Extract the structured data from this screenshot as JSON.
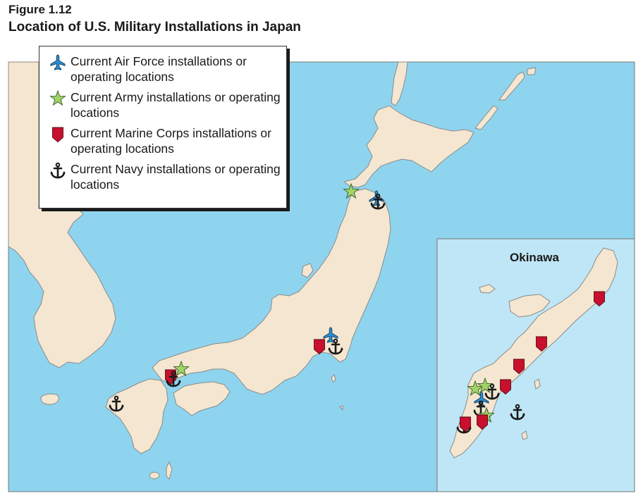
{
  "figure": {
    "label": "Figure 1.12",
    "title": "Location of U.S. Military Installations in Japan"
  },
  "legend": {
    "items": [
      {
        "icon": "airplane-icon",
        "color": "#2e8fd1",
        "label": "Current Air Force installations or operating locations"
      },
      {
        "icon": "star-icon",
        "color": "#9fd46a",
        "label": "Current Army installations or operating locations"
      },
      {
        "icon": "shield-icon",
        "color": "#c8102e",
        "label": "Current Marine Corps installations or operating locations"
      },
      {
        "icon": "anchor-icon",
        "color": "#1a1a1a",
        "label": "Current Navy installations or operating locations"
      }
    ]
  },
  "inset": {
    "title": "Okinawa"
  },
  "colors": {
    "sea": "#8fd4ee",
    "inset_sea": "#bfe6f6",
    "land": "#f4e6d0",
    "coast": "#8a8a8a",
    "air_force": "#2e8fd1",
    "army": "#9fd46a",
    "marine": "#c8102e",
    "navy": "#1a1a1a"
  }
}
